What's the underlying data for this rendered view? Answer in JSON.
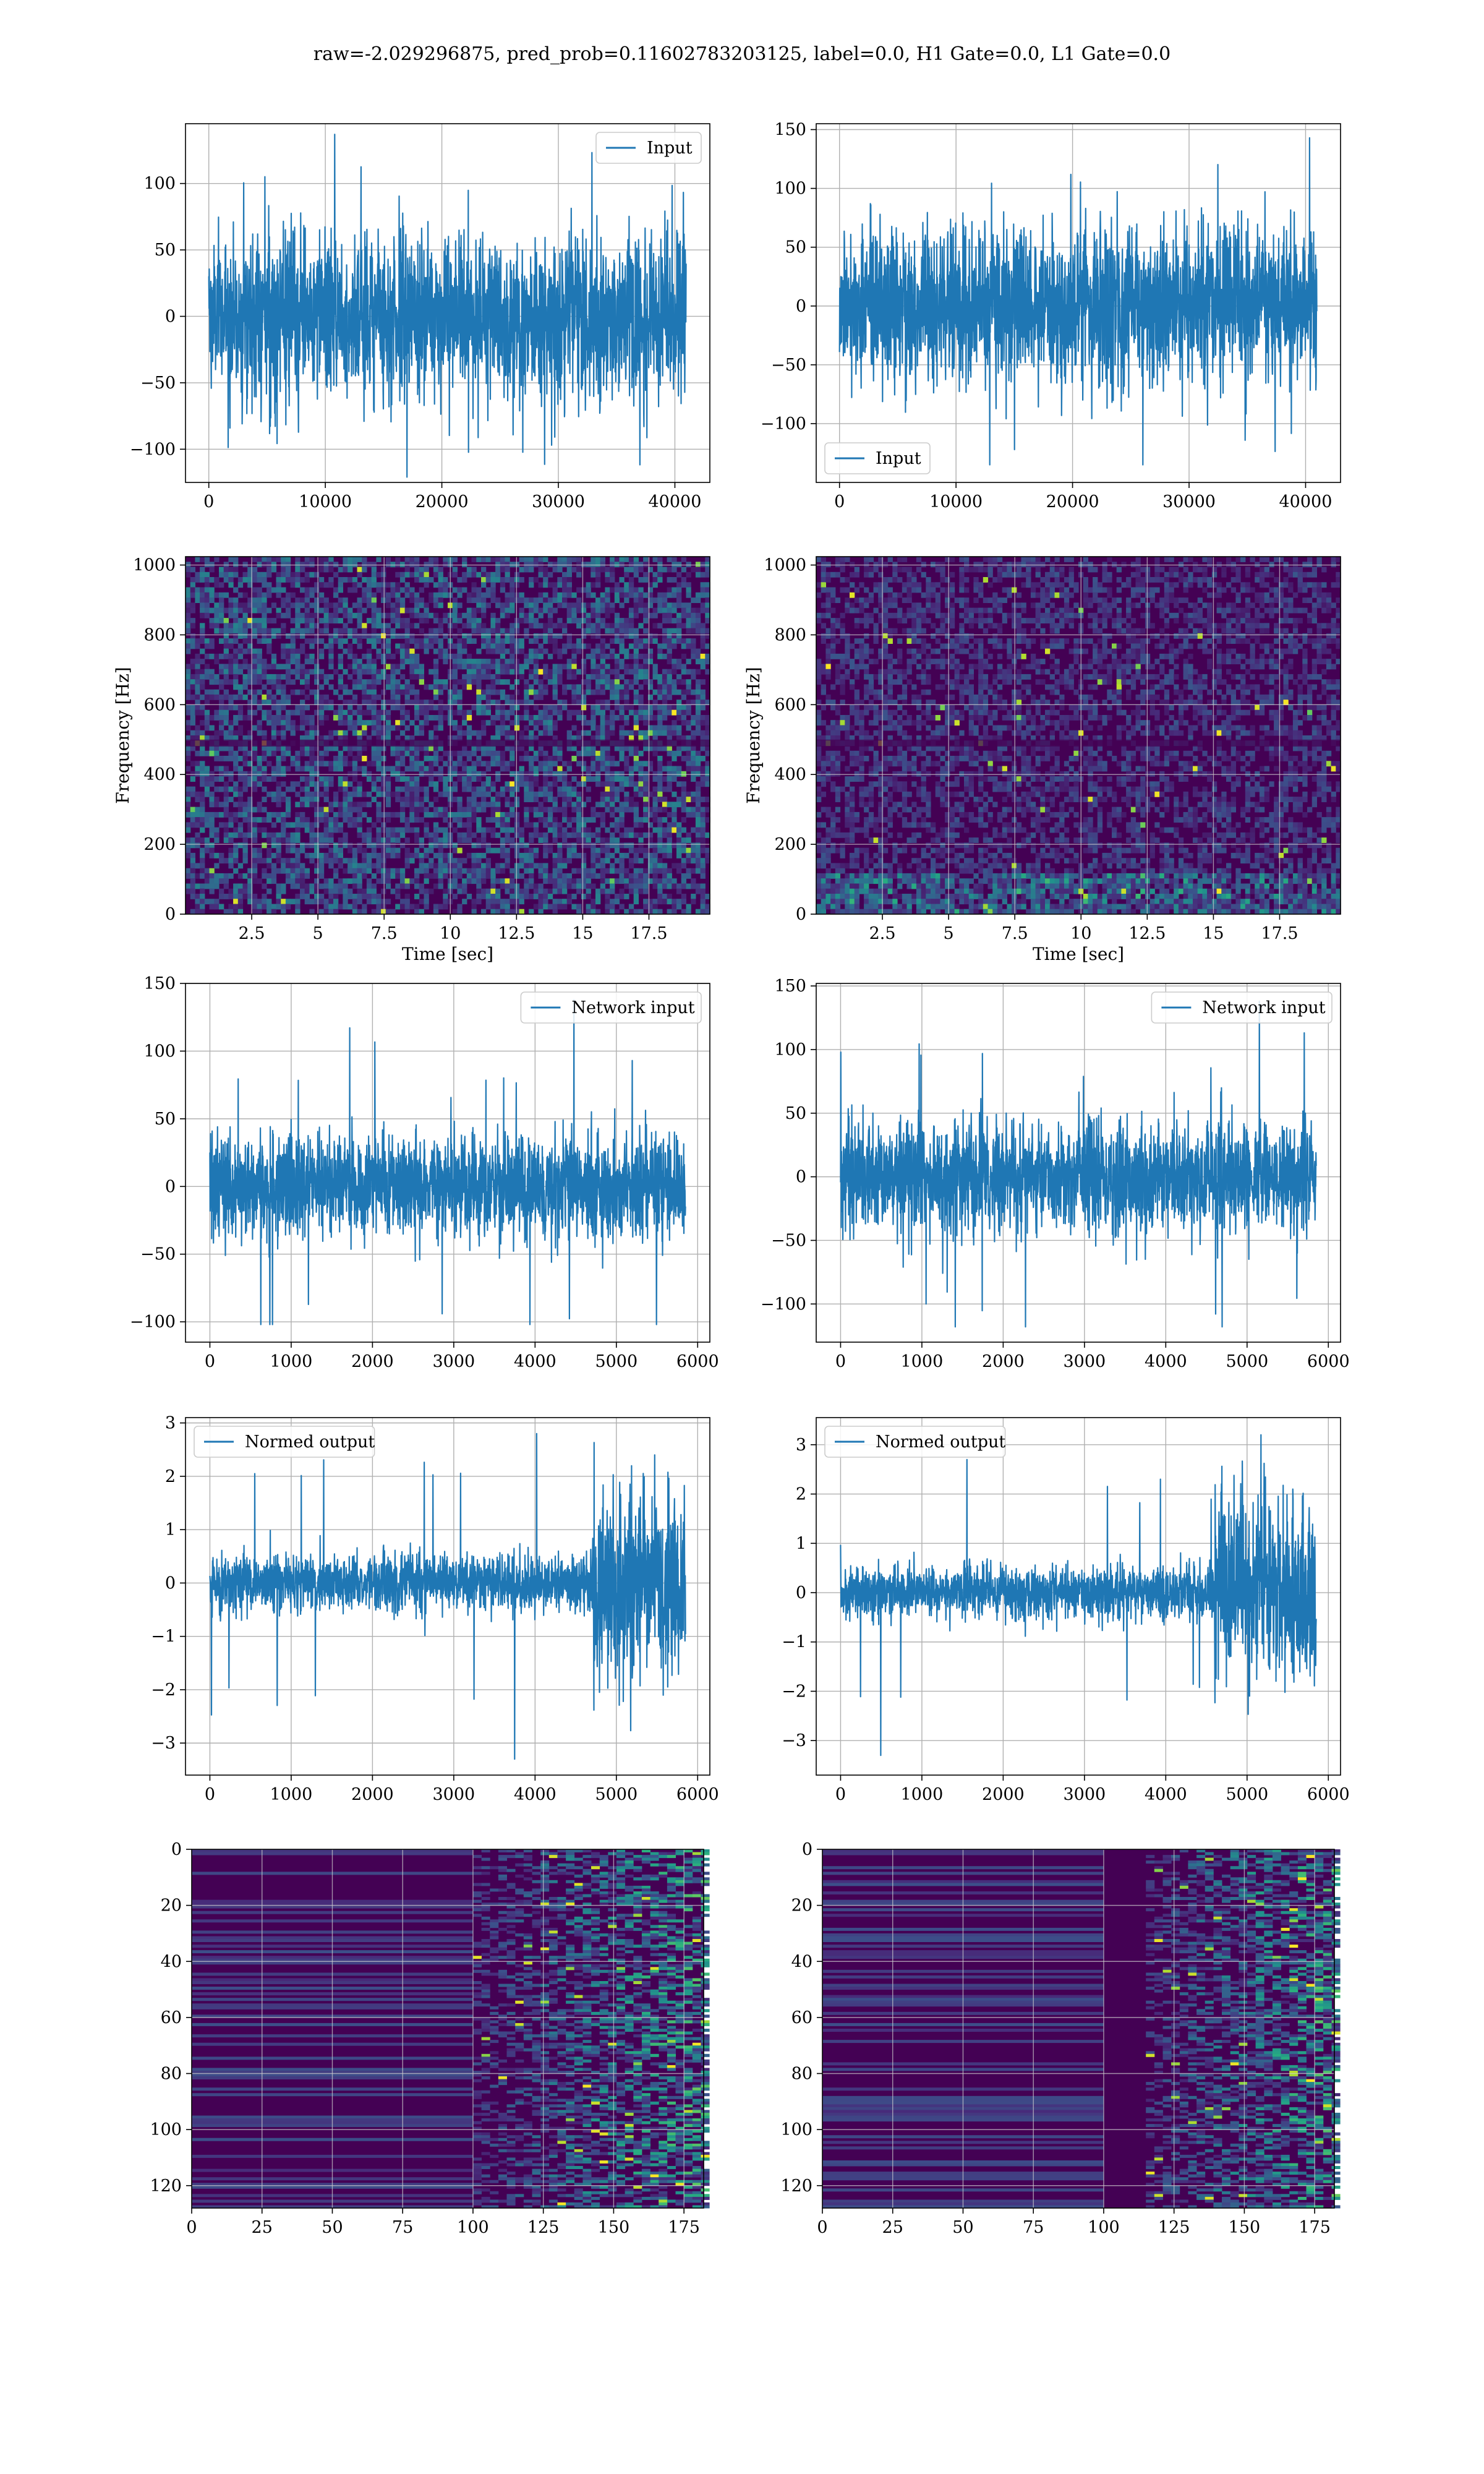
{
  "suptitle": "raw=-2.029296875, pred_prob=0.11602783203125, label=0.0, H1 Gate=0.0, L1 Gate=0.0",
  "colors": {
    "line": "#1f77b4",
    "grid": "#b0b0b0",
    "spine": "#000000",
    "viridis": [
      "#440154",
      "#472d7b",
      "#3b528b",
      "#2c728e",
      "#21918c",
      "#28ae80",
      "#5ec962",
      "#addc30",
      "#fde725"
    ]
  },
  "chart_data": [
    {
      "panel": "row1-left",
      "type": "line",
      "legend": {
        "labels": [
          "Input"
        ],
        "loc": "upper right"
      },
      "xlim": [
        -2000,
        43000
      ],
      "ylim": [
        -125,
        145
      ],
      "xticks": [
        0,
        10000,
        20000,
        30000,
        40000
      ],
      "yticks": [
        -100,
        -50,
        0,
        50,
        100
      ],
      "grid": true,
      "series": [
        {
          "name": "Input",
          "n_samples": 40960,
          "core_amplitude": [
            -70,
            70
          ],
          "max": 137,
          "min": -121
        }
      ]
    },
    {
      "panel": "row1-right",
      "type": "line",
      "legend": {
        "labels": [
          "Input"
        ],
        "loc": "lower left"
      },
      "xlim": [
        -2000,
        43000
      ],
      "ylim": [
        -150,
        155
      ],
      "xticks": [
        0,
        10000,
        20000,
        30000,
        40000
      ],
      "yticks": [
        -100,
        -50,
        0,
        50,
        100,
        150
      ],
      "grid": true,
      "series": [
        {
          "name": "Input",
          "n_samples": 40960,
          "core_amplitude": [
            -75,
            75
          ],
          "max": 143,
          "min": -135
        }
      ]
    },
    {
      "panel": "row2-left",
      "type": "heatmap",
      "xlabel": "Time [sec]",
      "ylabel": "Frequency [Hz]",
      "xlim": [
        0,
        19.8
      ],
      "ylim": [
        0,
        1024
      ],
      "xticks": [
        2.5,
        5.0,
        7.5,
        10.0,
        12.5,
        15.0,
        17.5
      ],
      "yticks": [
        0,
        200,
        400,
        600,
        800,
        1000
      ],
      "grid": true,
      "colormap": "viridis"
    },
    {
      "panel": "row2-right",
      "type": "heatmap",
      "xlabel": "Time [sec]",
      "ylabel": "Frequency [Hz]",
      "xlim": [
        0,
        19.8
      ],
      "ylim": [
        0,
        1024
      ],
      "xticks": [
        2.5,
        5.0,
        7.5,
        10.0,
        12.5,
        15.0,
        17.5
      ],
      "yticks": [
        0,
        200,
        400,
        600,
        800,
        1000
      ],
      "grid": true,
      "colormap": "viridis"
    },
    {
      "panel": "row3-left",
      "type": "line",
      "legend": {
        "labels": [
          "Network input"
        ],
        "loc": "upper right"
      },
      "xlim": [
        -300,
        6150
      ],
      "ylim": [
        -115,
        150
      ],
      "xticks": [
        0,
        1000,
        2000,
        3000,
        4000,
        5000,
        6000
      ],
      "yticks": [
        -100,
        -50,
        0,
        50,
        100,
        150
      ],
      "grid": true,
      "series": [
        {
          "name": "Network input",
          "n_samples": 5850,
          "core_amplitude": [
            -45,
            45
          ],
          "max": 138,
          "min": -102
        }
      ]
    },
    {
      "panel": "row3-right",
      "type": "line",
      "legend": {
        "labels": [
          "Network input"
        ],
        "loc": "upper right"
      },
      "xlim": [
        -300,
        6150
      ],
      "ylim": [
        -130,
        152
      ],
      "xticks": [
        0,
        1000,
        2000,
        3000,
        4000,
        5000,
        6000
      ],
      "yticks": [
        -100,
        -50,
        0,
        50,
        100,
        150
      ],
      "grid": true,
      "series": [
        {
          "name": "Network input",
          "n_samples": 5850,
          "core_amplitude": [
            -50,
            50
          ],
          "max": 138,
          "min": -118
        }
      ]
    },
    {
      "panel": "row4-left",
      "type": "line",
      "legend": {
        "labels": [
          "Normed output"
        ],
        "loc": "upper left"
      },
      "xlim": [
        -300,
        6150
      ],
      "ylim": [
        -3.6,
        3.1
      ],
      "xticks": [
        0,
        1000,
        2000,
        3000,
        4000,
        5000,
        6000
      ],
      "yticks": [
        -3,
        -2,
        -1,
        0,
        1,
        2,
        3
      ],
      "grid": true,
      "series": [
        {
          "name": "Normed output",
          "n_samples": 5850,
          "core_amplitude": [
            -0.6,
            0.6
          ],
          "burst_start": 4700,
          "burst_amplitude": [
            -1.6,
            1.8
          ],
          "max": 2.8,
          "min": -3.3
        }
      ]
    },
    {
      "panel": "row4-right",
      "type": "line",
      "legend": {
        "labels": [
          "Normed output"
        ],
        "loc": "upper left"
      },
      "xlim": [
        -300,
        6150
      ],
      "ylim": [
        -3.7,
        3.55
      ],
      "xticks": [
        0,
        1000,
        2000,
        3000,
        4000,
        5000,
        6000
      ],
      "yticks": [
        -3,
        -2,
        -1,
        0,
        1,
        2,
        3
      ],
      "grid": true,
      "series": [
        {
          "name": "Normed output",
          "n_samples": 5850,
          "core_amplitude": [
            -0.6,
            0.6
          ],
          "burst_start": 4600,
          "burst_amplitude": [
            -1.6,
            1.9
          ],
          "max": 3.2,
          "min": -3.3
        }
      ]
    },
    {
      "panel": "row5-left",
      "type": "heatmap",
      "xlim": [
        0,
        182
      ],
      "ylim": [
        128,
        0
      ],
      "xticks": [
        0,
        25,
        50,
        75,
        100,
        125,
        150,
        175
      ],
      "yticks": [
        0,
        20,
        40,
        60,
        80,
        100,
        120
      ],
      "grid": true,
      "colormap": "viridis"
    },
    {
      "panel": "row5-right",
      "type": "heatmap",
      "xlim": [
        0,
        182
      ],
      "ylim": [
        128,
        0
      ],
      "xticks": [
        0,
        25,
        50,
        75,
        100,
        125,
        150,
        175
      ],
      "yticks": [
        0,
        20,
        40,
        60,
        80,
        100,
        120
      ],
      "grid": true,
      "colormap": "viridis"
    }
  ]
}
